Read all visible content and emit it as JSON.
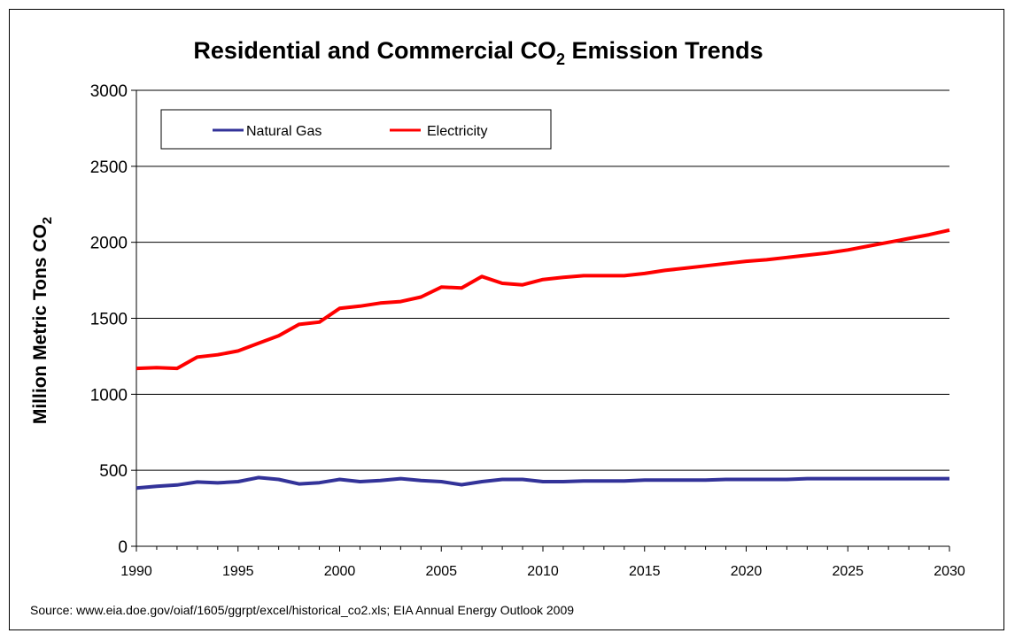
{
  "chart_data": {
    "type": "line",
    "title": {
      "main": "Residential and Commercial CO",
      "sub": "2",
      "tail": " Emission Trends"
    },
    "ylabel": {
      "main": "Million Metric Tons CO",
      "sub": "2"
    },
    "xlabel": "",
    "xlim": [
      1990,
      2030
    ],
    "ylim": [
      0,
      3000
    ],
    "xticks": [
      1990,
      1995,
      2000,
      2005,
      2010,
      2015,
      2020,
      2025,
      2030
    ],
    "yticks": [
      0,
      500,
      1000,
      1500,
      2000,
      2500,
      3000
    ],
    "grid": "horizontal",
    "legend_position": "top-left",
    "x": [
      1990,
      1991,
      1992,
      1993,
      1994,
      1995,
      1996,
      1997,
      1998,
      1999,
      2000,
      2001,
      2002,
      2003,
      2004,
      2005,
      2006,
      2007,
      2008,
      2009,
      2010,
      2011,
      2012,
      2013,
      2014,
      2015,
      2016,
      2017,
      2018,
      2019,
      2020,
      2021,
      2022,
      2023,
      2024,
      2025,
      2026,
      2027,
      2028,
      2029,
      2030
    ],
    "series": [
      {
        "name": "Natural Gas",
        "color": "#333399",
        "values": [
          383,
          395,
          403,
          423,
          417,
          425,
          452,
          440,
          410,
          418,
          440,
          425,
          432,
          445,
          432,
          425,
          405,
          425,
          440,
          440,
          425,
          425,
          430,
          430,
          430,
          435,
          435,
          435,
          435,
          440,
          440,
          440,
          440,
          445,
          445,
          445,
          445,
          445,
          445,
          445,
          445
        ]
      },
      {
        "name": "Electricity",
        "color": "#ff0000",
        "values": [
          1170,
          1175,
          1170,
          1245,
          1260,
          1285,
          1335,
          1385,
          1460,
          1475,
          1565,
          1580,
          1600,
          1610,
          1640,
          1705,
          1700,
          1775,
          1730,
          1720,
          1755,
          1770,
          1780,
          1780,
          1780,
          1795,
          1815,
          1830,
          1845,
          1860,
          1875,
          1885,
          1900,
          1915,
          1930,
          1950,
          1975,
          2000,
          2025,
          2050,
          2080
        ]
      }
    ],
    "source": "Source: www.eia.doe.gov/oiaf/1605/ggrpt/excel/historical_co2.xls; EIA Annual Energy Outlook 2009"
  }
}
